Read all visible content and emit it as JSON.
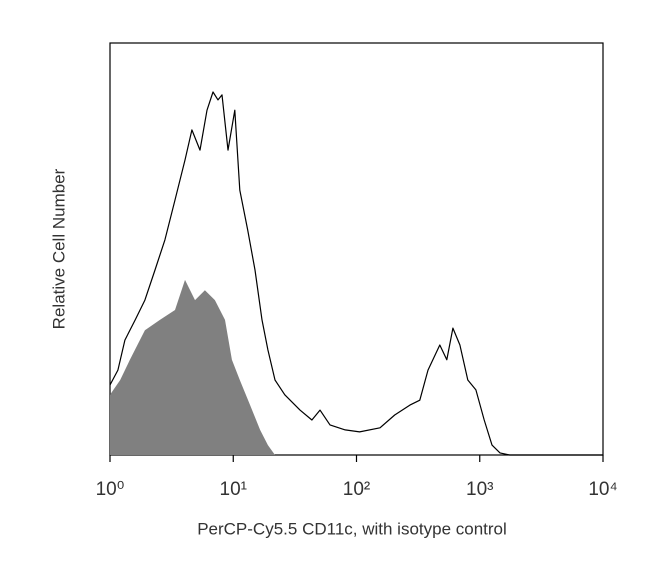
{
  "chart_data": {
    "type": "line",
    "xlabel": "PerCP-Cy5.5 CD11c, with isotype control",
    "ylabel": "Relative Cell Number",
    "xscale": "log",
    "xlim": [
      1,
      10000
    ],
    "xticks": [
      {
        "value": 1,
        "label": "10⁰"
      },
      {
        "value": 10,
        "label": "10¹"
      },
      {
        "value": 100,
        "label": "10²"
      },
      {
        "value": 1000,
        "label": "10³"
      },
      {
        "value": 10000,
        "label": "10⁴"
      }
    ],
    "ylim": [
      0,
      100
    ],
    "series": [
      {
        "color": "#000000",
        "fill": false,
        "x": [
          1,
          1.16,
          1.32,
          1.6,
          1.92,
          2.32,
          2.79,
          3.37,
          4.06,
          4.62,
          5.37,
          6.12,
          6.85,
          7.52,
          8.1,
          9.06,
          10.3,
          11.3,
          13.1,
          15,
          17.1,
          19.1,
          21.8,
          26.2,
          34.8,
          43.5,
          50.6,
          60.9,
          80.9,
          106,
          155,
          204,
          271,
          326,
          380,
          474,
          540,
          605,
          690,
          800,
          930,
          1087,
          1257,
          1459,
          1747,
          10000
        ],
        "values": [
          17,
          20.6,
          27.9,
          32.8,
          37.6,
          44.9,
          52.2,
          61.9,
          71.6,
          78.9,
          74,
          83.7,
          88.1,
          86.2,
          87.4,
          74,
          83.7,
          64.3,
          54.6,
          44.9,
          32.8,
          25.5,
          18.2,
          14.6,
          10.9,
          8.5,
          10.9,
          7.3,
          6.1,
          5.6,
          6.6,
          9.7,
          12.1,
          13.3,
          20.6,
          26.7,
          23.1,
          30.8,
          26.7,
          18.2,
          15.8,
          8.5,
          2.4,
          0.5,
          0,
          0
        ]
      },
      {
        "color": "#808080",
        "fill": true,
        "x": [
          1,
          1.21,
          1.45,
          1.92,
          2.54,
          3.37,
          4.06,
          4.89,
          5.89,
          7.1,
          8.57,
          9.76,
          11.3,
          13.7,
          16.5,
          19.1,
          21.8
        ],
        "values": [
          14.6,
          18.2,
          23.1,
          30.3,
          32.8,
          35.2,
          42.5,
          37.6,
          40,
          37.6,
          32.8,
          23.1,
          18.2,
          12.1,
          6.1,
          2.4,
          0
        ]
      }
    ]
  }
}
